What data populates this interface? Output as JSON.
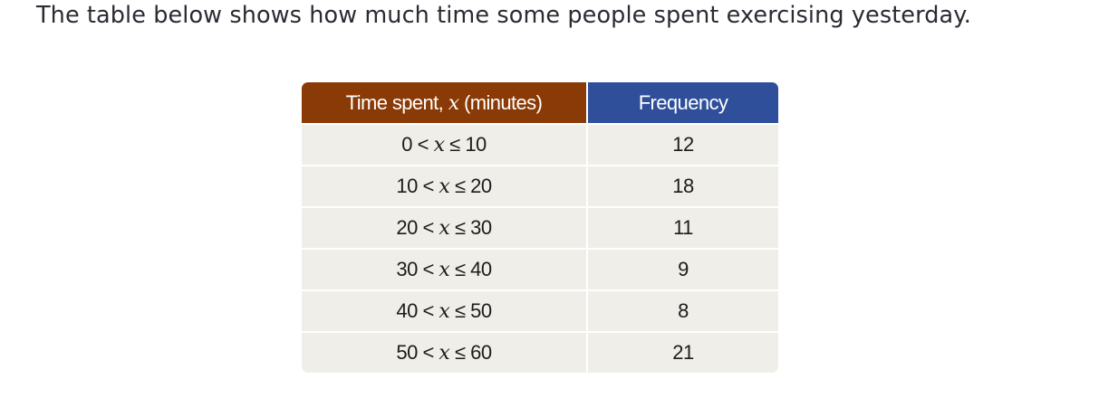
{
  "intro_text": "The table below shows how much time some people spent exercising yesterday.",
  "table": {
    "header": {
      "time_prefix": "Time spent, ",
      "variable": "x",
      "time_suffix": " (minutes)",
      "frequency": "Frequency"
    },
    "rows": [
      {
        "lower": "0",
        "upper": "10",
        "frequency": "12"
      },
      {
        "lower": "10",
        "upper": "20",
        "frequency": "18"
      },
      {
        "lower": "20",
        "upper": "30",
        "frequency": "11"
      },
      {
        "lower": "30",
        "upper": "40",
        "frequency": "9"
      },
      {
        "lower": "40",
        "upper": "50",
        "frequency": "8"
      },
      {
        "lower": "50",
        "upper": "60",
        "frequency": "21"
      }
    ],
    "less_than_symbol": "<",
    "less_equal_symbol": "≤",
    "colors": {
      "time_header": "#8a3a06",
      "frequency_header": "#2f4f9b",
      "row_background": "#efeee8"
    }
  }
}
